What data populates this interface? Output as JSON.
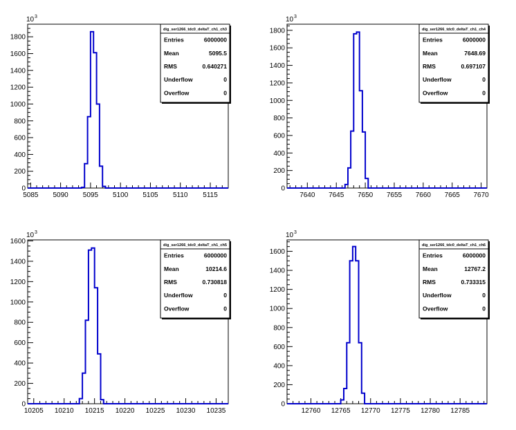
{
  "colors": {
    "histogram": "#0000cc",
    "axis": "#000000",
    "background": "#ffffff"
  },
  "chart_data": [
    {
      "type": "bar",
      "title": "dig_ser1266_tdc0_deltaT_ch1_ch3",
      "ylabel_exponent": "10",
      "ylabel_power": "3",
      "xlim": [
        5084.5,
        5118
      ],
      "ylim": [
        0,
        1950
      ],
      "xticks": [
        "5085",
        "5090",
        "5095",
        "5100",
        "5105",
        "5110",
        "5115"
      ],
      "yticks": [
        "0",
        "200",
        "400",
        "600",
        "800",
        "1000",
        "1200",
        "1400",
        "1600",
        "1800"
      ],
      "bin_edges": [
        5093.5,
        5094,
        5094.5,
        5095,
        5095.5,
        5096,
        5096.5,
        5097,
        5097.5
      ],
      "values": [
        8,
        290,
        850,
        1860,
        1610,
        1000,
        260,
        20
      ],
      "stats": [
        {
          "label": "Entries",
          "value": "6000000"
        },
        {
          "label": "Mean",
          "value": "5095.5"
        },
        {
          "label": "RMS",
          "value": "0.640271"
        },
        {
          "label": "Underflow",
          "value": "0"
        },
        {
          "label": "Overflow",
          "value": "0"
        }
      ]
    },
    {
      "type": "bar",
      "title": "dig_ser1266_tdc0_deltaT_ch1_ch4",
      "ylabel_exponent": "10",
      "ylabel_power": "3",
      "xlim": [
        7636.5,
        7671
      ],
      "ylim": [
        0,
        1870
      ],
      "xticks": [
        "7640",
        "7645",
        "7650",
        "7655",
        "7660",
        "7665",
        "7670"
      ],
      "yticks": [
        "0",
        "200",
        "400",
        "600",
        "800",
        "1000",
        "1200",
        "1400",
        "1600",
        "1800"
      ],
      "bin_edges": [
        7646.5,
        7647,
        7647.5,
        7648,
        7648.5,
        7649,
        7649.5,
        7650,
        7650.5
      ],
      "values": [
        40,
        230,
        650,
        1760,
        1780,
        1110,
        640,
        110
      ],
      "stats": [
        {
          "label": "Entries",
          "value": "6000000"
        },
        {
          "label": "Mean",
          "value": "7648.69"
        },
        {
          "label": "RMS",
          "value": "0.697107"
        },
        {
          "label": "Underflow",
          "value": "0"
        },
        {
          "label": "Overflow",
          "value": "0"
        }
      ]
    },
    {
      "type": "bar",
      "title": "dig_ser1266_tdc0_deltaT_ch1_ch5",
      "ylabel_exponent": "10",
      "ylabel_power": "3",
      "xlim": [
        10204,
        10237
      ],
      "ylim": [
        0,
        1610
      ],
      "xticks": [
        "10205",
        "10210",
        "10215",
        "10220",
        "10225",
        "10230",
        "10235"
      ],
      "yticks": [
        "0",
        "200",
        "400",
        "600",
        "800",
        "1000",
        "1200",
        "1400",
        "1600"
      ],
      "bin_edges": [
        10212.5,
        10213,
        10213.5,
        10214,
        10214.5,
        10215,
        10215.5,
        10216,
        10216.5
      ],
      "values": [
        50,
        300,
        820,
        1510,
        1530,
        1140,
        490,
        40
      ],
      "stats": [
        {
          "label": "Entries",
          "value": "6000000"
        },
        {
          "label": "Mean",
          "value": "10214.6"
        },
        {
          "label": "RMS",
          "value": "0.730818"
        },
        {
          "label": "Underflow",
          "value": "0"
        },
        {
          "label": "Overflow",
          "value": "0"
        }
      ]
    },
    {
      "type": "bar",
      "title": "dig_ser1266_tdc0_deltaT_ch1_ch6",
      "ylabel_exponent": "10",
      "ylabel_power": "3",
      "xlim": [
        12756,
        12789.5
      ],
      "ylim": [
        0,
        1720
      ],
      "xticks": [
        "12760",
        "12765",
        "12770",
        "12775",
        "12780",
        "12785"
      ],
      "yticks": [
        "0",
        "200",
        "400",
        "600",
        "800",
        "1000",
        "1200",
        "1400",
        "1600"
      ],
      "bin_edges": [
        12765,
        12765.5,
        12766,
        12766.5,
        12767,
        12767.5,
        12768,
        12768.5,
        12769
      ],
      "values": [
        40,
        160,
        640,
        1500,
        1650,
        1500,
        640,
        110
      ],
      "stats": [
        {
          "label": "Entries",
          "value": "6000000"
        },
        {
          "label": "Mean",
          "value": "12767.2"
        },
        {
          "label": "RMS",
          "value": "0.733315"
        },
        {
          "label": "Underflow",
          "value": "0"
        },
        {
          "label": "Overflow",
          "value": "0"
        }
      ]
    }
  ]
}
